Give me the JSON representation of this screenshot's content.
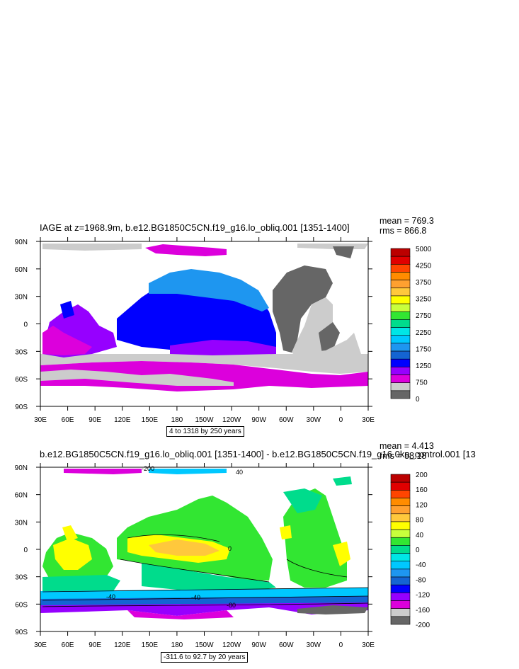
{
  "chart_data": [
    {
      "type": "heatmap",
      "title": "IAGE at z=1968.9m, b.e12.BG1850C5CN.f19_g16.lo_obliq.001 [1351-1400]",
      "stats": {
        "mean": "mean = 769.3",
        "rms": "rms = 866.8"
      },
      "x_ticks": [
        "30E",
        "60E",
        "90E",
        "120E",
        "150E",
        "180",
        "150W",
        "120W",
        "90W",
        "60W",
        "30W",
        "0",
        "30E"
      ],
      "y_ticks": [
        "90N",
        "60N",
        "30N",
        "0",
        "30S",
        "60S",
        "90S"
      ],
      "xlim": [
        30,
        390
      ],
      "ylim": [
        -90,
        90
      ],
      "colorbar": {
        "labels": [
          "5000",
          "4250",
          "3750",
          "3250",
          "2750",
          "2250",
          "1750",
          "1250",
          "750",
          "0"
        ],
        "colors": [
          "#bb0000",
          "#e00000",
          "#ff4500",
          "#ff8c00",
          "#ffa030",
          "#ffc83c",
          "#ffff00",
          "#c8ff3c",
          "#32e632",
          "#00dc8c",
          "#00e6e6",
          "#00c8ff",
          "#1e96f0",
          "#1464d2",
          "#0000ff",
          "#9600ff",
          "#dc00dc",
          "#cccccc",
          "#666666"
        ]
      },
      "range_note": "4 to 1318 by 250 years"
    },
    {
      "type": "heatmap",
      "title": "b.e12.BG1850C5CN.f19_g16.lo_obliq.001 [1351-1400] - b.e12.BG1850C5CN.f19_g16.0ka_control.001 [13",
      "stats": {
        "mean": "mean = 4.413",
        "rms": "rms = 58.18"
      },
      "x_ticks": [
        "30E",
        "60E",
        "90E",
        "120E",
        "150E",
        "180",
        "150W",
        "120W",
        "90W",
        "60W",
        "30W",
        "0",
        "30E"
      ],
      "y_ticks": [
        "90N",
        "60N",
        "30N",
        "0",
        "30S",
        "60S",
        "90S"
      ],
      "xlim": [
        30,
        390
      ],
      "ylim": [
        -90,
        90
      ],
      "colorbar": {
        "labels": [
          "200",
          "160",
          "120",
          "80",
          "40",
          "0",
          "-40",
          "-80",
          "-120",
          "-160",
          "-200"
        ],
        "colors": [
          "#bb0000",
          "#e00000",
          "#ff4500",
          "#ff8c00",
          "#ffa030",
          "#ffc83c",
          "#ffff00",
          "#c8ff3c",
          "#32e632",
          "#00dc8c",
          "#00e6e6",
          "#00c8ff",
          "#1e96f0",
          "#1464d2",
          "#0000ff",
          "#9600ff",
          "#dc00dc",
          "#cccccc",
          "#666666"
        ]
      },
      "contour_labels": [
        "40",
        "0",
        "-40",
        "-80",
        "-120",
        "-200"
      ],
      "range_note": "-311.6 to 92.7 by 20 years"
    }
  ]
}
